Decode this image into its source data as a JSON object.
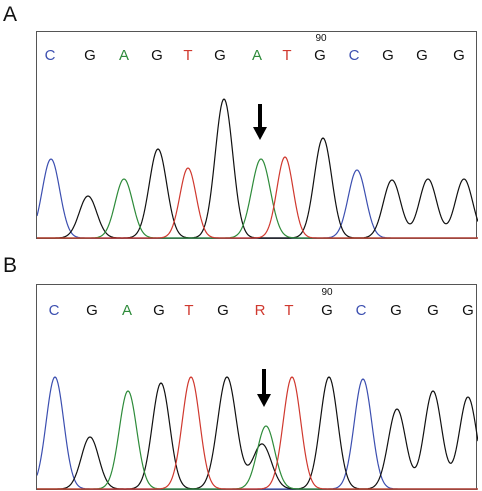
{
  "colors": {
    "A": "#2e8b3a",
    "C": "#3c4fb0",
    "G": "#111111",
    "T": "#d0392f",
    "R": "#d0392f"
  },
  "panels": [
    {
      "letter": "A",
      "position_label": "90",
      "bases": [
        "C",
        "G",
        "A",
        "G",
        "T",
        "G",
        "A",
        "T",
        "G",
        "C",
        "G",
        "G",
        "G"
      ],
      "arrow_base_index": 6
    },
    {
      "letter": "B",
      "position_label": "90",
      "bases": [
        "C",
        "G",
        "A",
        "G",
        "T",
        "G",
        "R",
        "T",
        "G",
        "C",
        "G",
        "G",
        "G"
      ],
      "arrow_base_index": 6
    }
  ],
  "arrow_icon": "down-arrow-icon"
}
